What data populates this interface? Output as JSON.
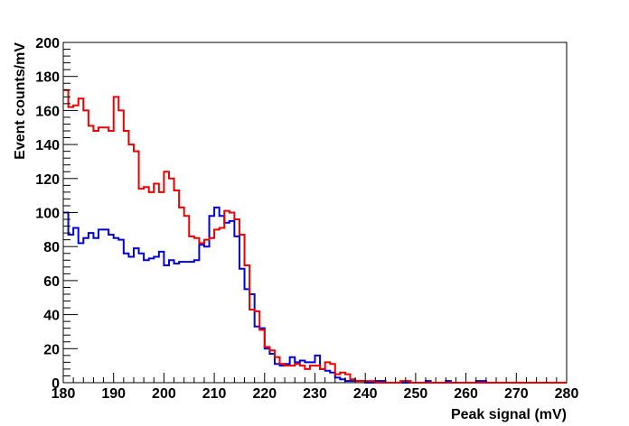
{
  "chart_data": {
    "type": "histogram",
    "title": "",
    "xlabel": "Peak signal (mV)",
    "ylabel": "Event counts/mV",
    "xlim": [
      180,
      280
    ],
    "ylim": [
      0,
      200
    ],
    "x_ticks": [
      180,
      190,
      200,
      210,
      220,
      230,
      240,
      250,
      260,
      270,
      280
    ],
    "y_ticks": [
      0,
      20,
      40,
      60,
      80,
      100,
      120,
      140,
      160,
      180,
      200
    ],
    "bin_width": 1,
    "grid": false,
    "legend": false,
    "series": [
      {
        "color": "#0000dd",
        "bin_start": 180,
        "values": [
          100,
          87,
          91,
          82,
          85,
          88,
          85,
          90,
          90,
          87,
          85,
          84,
          76,
          74,
          79,
          76,
          72,
          73,
          74,
          77,
          69,
          72,
          70,
          71,
          71,
          71,
          72,
          81,
          80,
          98,
          103,
          98,
          94,
          95,
          86,
          67,
          55,
          52,
          33,
          32,
          20,
          17,
          11,
          10,
          11,
          15,
          12,
          13,
          12,
          12,
          16,
          8,
          7,
          6,
          3,
          2,
          1,
          1,
          1,
          1,
          0,
          0,
          1,
          1,
          0,
          0,
          0,
          0,
          0,
          0,
          0,
          0,
          1,
          0,
          0,
          0,
          1,
          0,
          0,
          0,
          0,
          0,
          1,
          1,
          0,
          0,
          0,
          0,
          0,
          0,
          0,
          0,
          0,
          0,
          0,
          0,
          0,
          0,
          0,
          0
        ]
      },
      {
        "color": "#ee0000",
        "bin_start": 180,
        "values": [
          172,
          162,
          163,
          167,
          160,
          151,
          148,
          150,
          150,
          148,
          168,
          160,
          148,
          140,
          136,
          114,
          115,
          112,
          117,
          112,
          124,
          120,
          113,
          103,
          98,
          86,
          85,
          82,
          84,
          85,
          90,
          91,
          101,
          100,
          96,
          87,
          69,
          43,
          42,
          31,
          21,
          19,
          15,
          11,
          10,
          10,
          11,
          10,
          8,
          10,
          10,
          8,
          12,
          11,
          5,
          6,
          5,
          2,
          1,
          1,
          1,
          1,
          0,
          0,
          0,
          0,
          0,
          1,
          1,
          0,
          0,
          0,
          0,
          0,
          0,
          0,
          0,
          0,
          0,
          0,
          0,
          0,
          0,
          0,
          0,
          0,
          0,
          0,
          0,
          0,
          0,
          0,
          0,
          0,
          0,
          0,
          0,
          0,
          0,
          0
        ]
      }
    ]
  }
}
